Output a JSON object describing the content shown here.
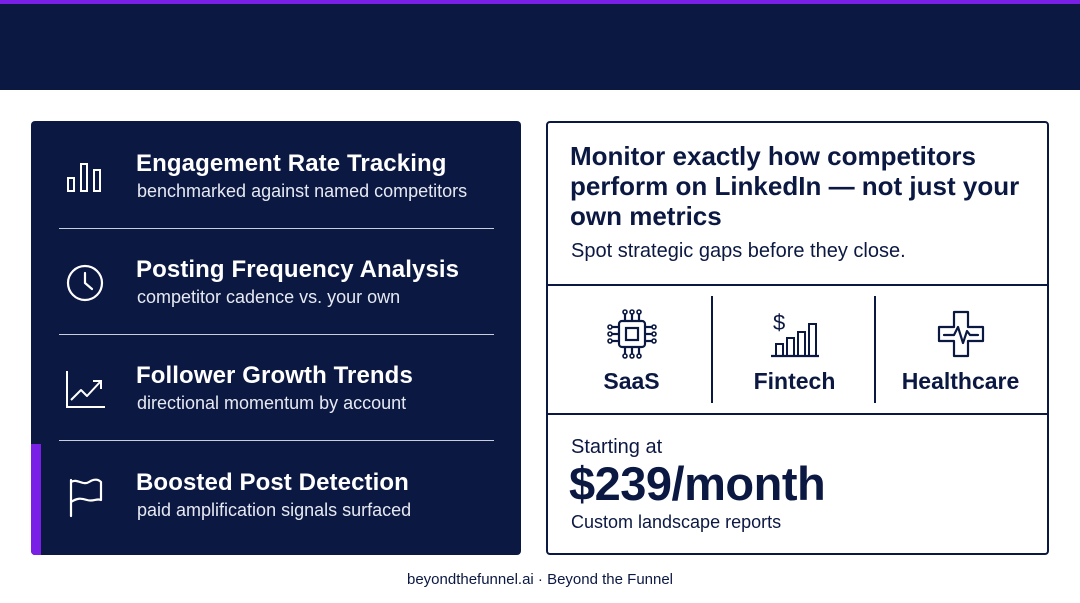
{
  "colors": {
    "navy": "#0b1842",
    "accent_purple": "#7a1fe6",
    "white": "#ffffff"
  },
  "features": [
    {
      "icon": "bar-chart-icon",
      "title": "Engagement Rate Tracking",
      "subtitle": "benchmarked against named competitors",
      "active": false
    },
    {
      "icon": "clock-icon",
      "title": "Posting Frequency Analysis",
      "subtitle": "competitor cadence vs. your own",
      "active": false
    },
    {
      "icon": "trend-up-icon",
      "title": "Follower Growth Trends",
      "subtitle": "directional momentum by account",
      "active": false
    },
    {
      "icon": "flag-icon",
      "title": "Boosted Post Detection",
      "subtitle": "paid amplification signals surfaced",
      "active": true
    }
  ],
  "card": {
    "headline": "Monitor exactly how competitors perform on LinkedIn — not just your own metrics",
    "tagline": "Spot strategic gaps before they close.",
    "industries": [
      {
        "icon": "cpu-chip-icon",
        "label": "SaaS"
      },
      {
        "icon": "dollar-bars-icon",
        "label": "Fintech"
      },
      {
        "icon": "medical-cross-icon",
        "label": "Healthcare"
      }
    ],
    "pricing": {
      "lead": "Starting at",
      "price": "$239/month",
      "note": "Custom landscape reports"
    }
  },
  "footer": "beyondthefunnel.ai · Beyond the Funnel"
}
